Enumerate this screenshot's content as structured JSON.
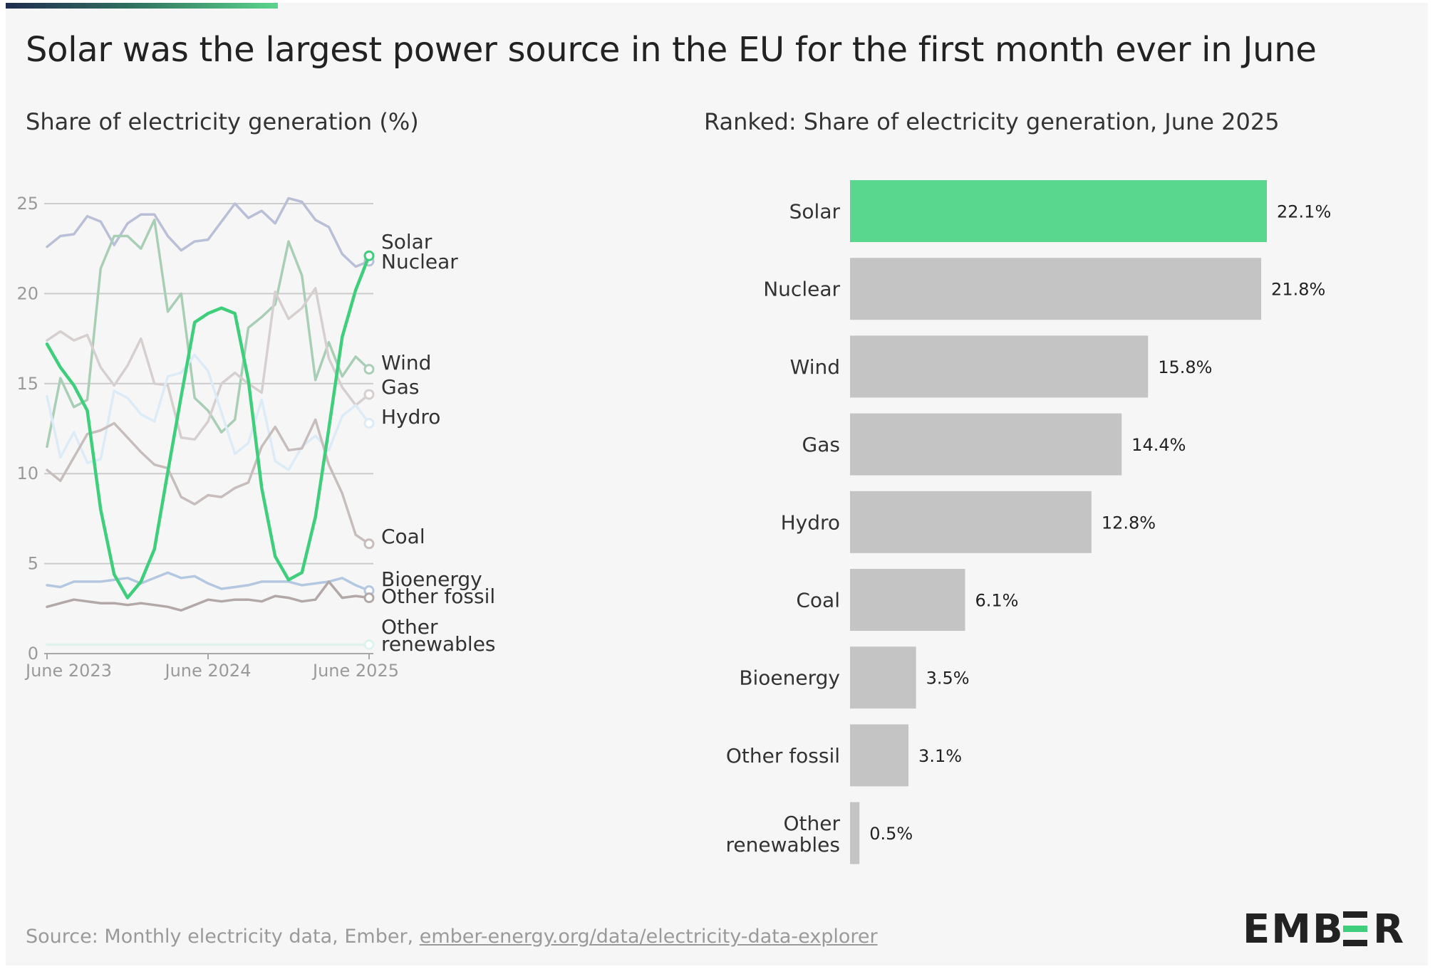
{
  "title": "Solar was the largest power source in the EU for the first month ever in June",
  "colors": {
    "solar": "#3fcf7c",
    "nuclear": "#b9bfd6",
    "wind": "#a9ceb6",
    "gas": "#d6cfcf",
    "hydro": "#dcebf6",
    "coal": "#c8bdbd",
    "bioenergy": "#b3c8e0",
    "other_fossil": "#b3a8a8",
    "other_renewables": "#dff3ee",
    "bar_highlight": "#5ad78e",
    "bar_default": "#c4c4c4",
    "grid": "#cccccc",
    "axis_text": "#9a9a9a",
    "label_text": "#333333"
  },
  "source": {
    "prefix": "Source: Monthly electricity data, Ember,",
    "link": "ember-energy.org/data/electricity-data-explorer"
  },
  "logo": {
    "text": "EMBER",
    "icon": "ember-logo-icon"
  },
  "chart_data": [
    {
      "type": "line",
      "title": "Share of electricity generation (%)",
      "x_tick_labels": [
        "June 2023",
        "June 2024",
        "June 2025"
      ],
      "x_tick_index": [
        0,
        12,
        24
      ],
      "yticks": [
        0,
        5,
        10,
        15,
        20,
        25
      ],
      "ylim": [
        0,
        27.5
      ],
      "grid": true,
      "x": [
        "2023-06",
        "2023-07",
        "2023-08",
        "2023-09",
        "2023-10",
        "2023-11",
        "2023-12",
        "2024-01",
        "2024-02",
        "2024-03",
        "2024-04",
        "2024-05",
        "2024-06",
        "2024-07",
        "2024-08",
        "2024-09",
        "2024-10",
        "2024-11",
        "2024-12",
        "2025-01",
        "2025-02",
        "2025-03",
        "2025-04",
        "2025-05",
        "2025-06"
      ],
      "series": [
        {
          "name": "Nuclear",
          "key": "nuclear",
          "values": [
            22.6,
            23.2,
            23.3,
            24.3,
            24.0,
            22.7,
            23.9,
            24.4,
            24.4,
            23.2,
            22.4,
            22.9,
            23.0,
            24.0,
            25.0,
            24.2,
            24.6,
            23.9,
            25.3,
            25.1,
            24.1,
            23.7,
            22.2,
            21.5,
            21.8
          ]
        },
        {
          "name": "Wind",
          "key": "wind",
          "values": [
            11.5,
            15.3,
            13.7,
            14.1,
            21.4,
            23.2,
            23.2,
            22.5,
            24.1,
            19.0,
            20.0,
            14.2,
            13.5,
            12.3,
            13.0,
            18.1,
            18.7,
            19.4,
            22.9,
            21.0,
            15.2,
            17.3,
            15.4,
            16.5,
            15.8
          ]
        },
        {
          "name": "Gas",
          "key": "gas",
          "values": [
            17.4,
            17.9,
            17.4,
            17.7,
            15.9,
            14.9,
            16.0,
            17.5,
            15.0,
            14.9,
            12.0,
            11.9,
            12.9,
            15.0,
            15.6,
            15.0,
            14.5,
            20.1,
            18.6,
            19.2,
            20.3,
            16.4,
            14.8,
            13.8,
            14.4
          ]
        },
        {
          "name": "Hydro",
          "key": "hydro",
          "values": [
            14.3,
            10.9,
            12.3,
            10.6,
            10.8,
            14.6,
            14.2,
            13.3,
            12.9,
            15.4,
            15.6,
            16.6,
            15.7,
            13.4,
            11.1,
            11.7,
            14.1,
            10.7,
            10.2,
            11.5,
            12.1,
            11.3,
            13.2,
            13.8,
            12.8
          ]
        },
        {
          "name": "Coal",
          "key": "coal",
          "values": [
            10.2,
            9.6,
            10.9,
            12.2,
            12.4,
            12.8,
            12.0,
            11.2,
            10.5,
            10.3,
            8.7,
            8.3,
            8.8,
            8.7,
            9.2,
            9.5,
            11.5,
            12.6,
            11.3,
            11.4,
            13.0,
            10.5,
            8.9,
            6.6,
            6.1
          ]
        },
        {
          "name": "Bioenergy",
          "key": "bioenergy",
          "values": [
            3.8,
            3.7,
            4.0,
            4.0,
            4.0,
            4.1,
            4.2,
            3.9,
            4.2,
            4.5,
            4.2,
            4.3,
            3.9,
            3.6,
            3.7,
            3.8,
            4.0,
            4.0,
            4.0,
            3.8,
            3.9,
            4.0,
            4.2,
            3.8,
            3.5
          ]
        },
        {
          "name": "Other fossil",
          "key": "other_fossil",
          "values": [
            2.6,
            2.8,
            3.0,
            2.9,
            2.8,
            2.8,
            2.7,
            2.8,
            2.7,
            2.6,
            2.4,
            2.7,
            3.0,
            2.9,
            3.0,
            3.0,
            2.9,
            3.2,
            3.1,
            2.9,
            3.0,
            4.0,
            3.1,
            3.2,
            3.1
          ]
        },
        {
          "name": "Other renewables",
          "key": "other_renewables",
          "values": [
            0.5,
            0.5,
            0.5,
            0.5,
            0.5,
            0.5,
            0.5,
            0.5,
            0.5,
            0.5,
            0.5,
            0.5,
            0.5,
            0.5,
            0.5,
            0.5,
            0.5,
            0.5,
            0.5,
            0.5,
            0.5,
            0.5,
            0.5,
            0.5,
            0.5
          ]
        },
        {
          "name": "Solar",
          "key": "solar",
          "values": [
            17.2,
            15.9,
            14.9,
            13.5,
            8.0,
            4.4,
            3.1,
            4.0,
            5.8,
            10.1,
            14.3,
            18.4,
            18.9,
            19.2,
            18.9,
            15.2,
            9.2,
            5.4,
            4.1,
            4.5,
            7.6,
            12.5,
            17.6,
            20.2,
            22.1
          ]
        }
      ],
      "end_labels": [
        {
          "key": "solar",
          "lines": [
            "Solar"
          ],
          "value": 22.1
        },
        {
          "key": "nuclear",
          "lines": [
            "Nuclear"
          ],
          "value": 21.8
        },
        {
          "key": "wind",
          "lines": [
            "Wind"
          ],
          "value": 15.8
        },
        {
          "key": "gas",
          "lines": [
            "Gas"
          ],
          "value": 14.4
        },
        {
          "key": "hydro",
          "lines": [
            "Hydro"
          ],
          "value": 12.8
        },
        {
          "key": "coal",
          "lines": [
            "Coal"
          ],
          "value": 6.1
        },
        {
          "key": "bioenergy",
          "lines": [
            "Bioenergy"
          ],
          "value": 3.5
        },
        {
          "key": "other_fossil",
          "lines": [
            "Other fossil"
          ],
          "value": 3.1
        },
        {
          "key": "other_renewables",
          "lines": [
            "Other",
            "renewables"
          ],
          "value": 0.5
        }
      ]
    },
    {
      "type": "bar",
      "orientation": "horizontal",
      "title": "Ranked: Share of electricity generation, June 2025",
      "xlim": [
        0,
        22.1
      ],
      "highlight": "Solar",
      "categories": [
        "Solar",
        "Nuclear",
        "Wind",
        "Gas",
        "Hydro",
        "Coal",
        "Bioenergy",
        "Other fossil",
        "Other renewables"
      ],
      "category_label_lines": [
        [
          "Solar"
        ],
        [
          "Nuclear"
        ],
        [
          "Wind"
        ],
        [
          "Gas"
        ],
        [
          "Hydro"
        ],
        [
          "Coal"
        ],
        [
          "Bioenergy"
        ],
        [
          "Other fossil"
        ],
        [
          "Other",
          "renewables"
        ]
      ],
      "values": [
        22.1,
        21.8,
        15.8,
        14.4,
        12.8,
        6.1,
        3.5,
        3.1,
        0.5
      ],
      "value_labels": [
        "22.1%",
        "21.8%",
        "15.8%",
        "14.4%",
        "12.8%",
        "6.1%",
        "3.5%",
        "3.1%",
        "0.5%"
      ]
    }
  ]
}
